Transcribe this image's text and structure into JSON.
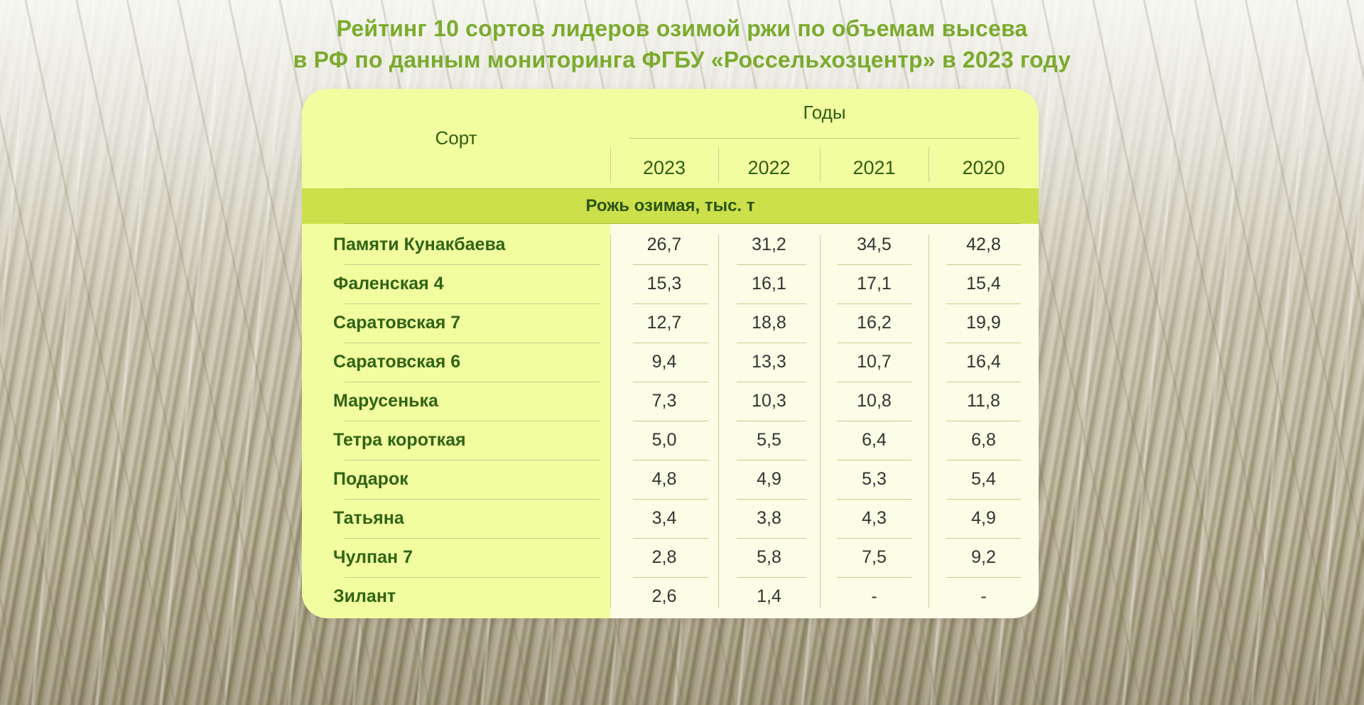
{
  "title": {
    "line1": "Рейтинг 10 сортов лидеров озимой  ржи по объемам высева",
    "line2": "в РФ по данным мониторинга ФГБУ «Россельхозцентр» в 2023 году"
  },
  "table": {
    "col_sort": "Сорт",
    "col_years": "Годы",
    "years": [
      "2023",
      "2022",
      "2021",
      "2020"
    ],
    "band": "Рожь озимая, тыс. т",
    "rows": [
      {
        "name": "Памяти Кунакбаева",
        "values": [
          "26,7",
          "31,2",
          "34,5",
          "42,8"
        ]
      },
      {
        "name": "Фаленская 4",
        "values": [
          "15,3",
          "16,1",
          "17,1",
          "15,4"
        ]
      },
      {
        "name": "Саратовская 7",
        "values": [
          "12,7",
          "18,8",
          "16,2",
          "19,9"
        ]
      },
      {
        "name": "Саратовская 6",
        "values": [
          "9,4",
          "13,3",
          "10,7",
          "16,4"
        ]
      },
      {
        "name": "Марусенька",
        "values": [
          "7,3",
          "10,3",
          "10,8",
          "11,8"
        ]
      },
      {
        "name": "Тетра короткая",
        "values": [
          "5,0",
          "5,5",
          "6,4",
          "6,8"
        ]
      },
      {
        "name": "Подарок",
        "values": [
          "4,8",
          "4,9",
          "5,3",
          "5,4"
        ]
      },
      {
        "name": "Татьяна",
        "values": [
          "3,4",
          "3,8",
          "4,3",
          "4,9"
        ]
      },
      {
        "name": "Чулпан 7",
        "values": [
          "2,8",
          "5,8",
          "7,5",
          "9,2"
        ]
      },
      {
        "name": "Зилант",
        "values": [
          "2,6",
          "1,4",
          "-",
          "-"
        ]
      }
    ]
  },
  "colors": {
    "title_green": "#7aab2c",
    "header_bg": "#f2fd9f",
    "band_bg": "#cbe04a",
    "data_bg": "#fbfde6",
    "text_green": "#2f6414"
  }
}
